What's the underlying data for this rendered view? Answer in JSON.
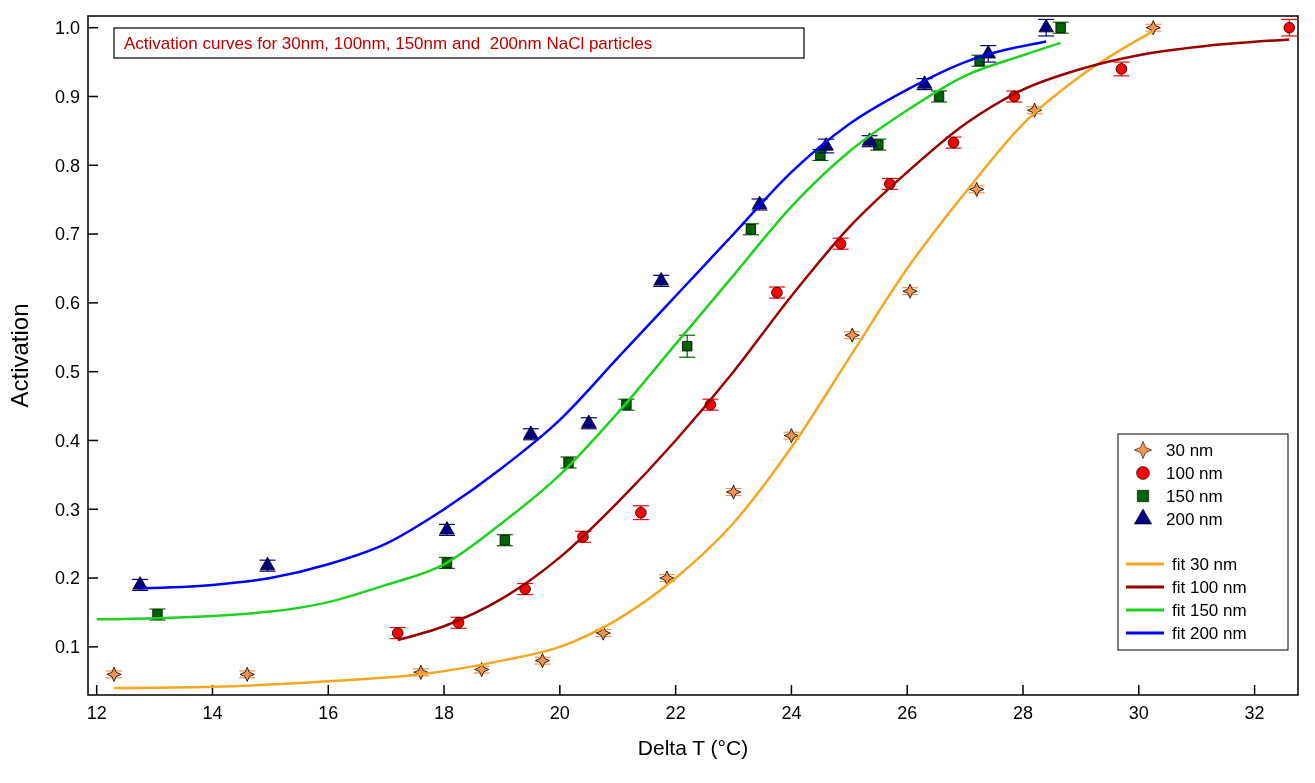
{
  "chart_data": {
    "type": "scatter",
    "title": "Activation curves for 30nm, 100nm, 150nm and  200nm NaCl particles",
    "xlabel": "Delta T (°C)",
    "ylabel": "Activation",
    "xlim": [
      11.85,
      32.75
    ],
    "ylim": [
      0.03,
      1.017
    ],
    "xticks": [
      12,
      14,
      16,
      18,
      20,
      22,
      24,
      26,
      28,
      30,
      32
    ],
    "yticks": [
      0.1,
      0.2,
      0.3,
      0.4,
      0.5,
      0.6,
      0.7,
      0.8,
      0.9,
      {
        "value": 1,
        "label": "1.0"
      }
    ],
    "grid": false,
    "legend": "bottom right",
    "series": [
      {
        "name": "30 nm",
        "marker": "star",
        "color": "#f4934f",
        "x": [
          12.3,
          14.6,
          17.6,
          18.65,
          19.7,
          20.75,
          21.85,
          23.0,
          24.0,
          25.05,
          26.05,
          27.2,
          28.2,
          30.25
        ],
        "values": [
          0.06,
          0.06,
          0.063,
          0.067,
          0.08,
          0.12,
          0.2,
          0.325,
          0.407,
          0.553,
          0.617,
          0.765,
          0.88,
          1.0
        ],
        "errors": [
          0.005,
          0.005,
          0.005,
          0.005,
          0.005,
          0.005,
          0.005,
          0.005,
          0.005,
          0.005,
          0.005,
          0.005,
          0.005,
          0.005
        ]
      },
      {
        "name": "100 nm",
        "marker": "circle",
        "color": "#ff0000",
        "x": [
          17.2,
          18.25,
          19.4,
          20.4,
          21.4,
          22.6,
          23.75,
          24.85,
          25.7,
          26.8,
          27.85,
          29.7,
          32.6
        ],
        "values": [
          0.12,
          0.135,
          0.184,
          0.26,
          0.295,
          0.452,
          0.615,
          0.686,
          0.773,
          0.833,
          0.9,
          0.94,
          1.0
        ],
        "errors": [
          0.008,
          0.008,
          0.008,
          0.008,
          0.01,
          0.008,
          0.008,
          0.008,
          0.008,
          0.008,
          0.008,
          0.01,
          0.012
        ]
      },
      {
        "name": "150 nm",
        "marker": "square",
        "color": "#006400",
        "x": [
          13.05,
          18.05,
          19.05,
          20.15,
          21.15,
          22.2,
          23.3,
          24.5,
          25.5,
          26.55,
          27.25,
          28.65
        ],
        "values": [
          0.147,
          0.222,
          0.255,
          0.368,
          0.452,
          0.537,
          0.707,
          0.815,
          0.83,
          0.9,
          0.952,
          1.0
        ],
        "errors": [
          0.008,
          0.008,
          0.008,
          0.008,
          0.008,
          0.016,
          0.008,
          0.008,
          0.008,
          0.008,
          0.008,
          0.008
        ]
      },
      {
        "name": "200 nm",
        "marker": "triangle",
        "color": "#000080",
        "x": [
          12.75,
          14.95,
          18.05,
          19.5,
          20.5,
          21.75,
          23.45,
          24.6,
          25.35,
          26.3,
          27.4,
          28.4
        ],
        "values": [
          0.19,
          0.218,
          0.27,
          0.409,
          0.425,
          0.632,
          0.743,
          0.828,
          0.835,
          0.918,
          0.962,
          1.0
        ],
        "errors": [
          0.008,
          0.008,
          0.008,
          0.008,
          0.008,
          0.008,
          0.008,
          0.01,
          0.008,
          0.008,
          0.012,
          0.012
        ]
      },
      {
        "name": "fit 30 nm",
        "type": "line",
        "color": "#f5a623",
        "x": [
          12.3,
          14,
          16,
          17.6,
          19,
          20,
          21,
          22,
          23,
          24,
          25,
          26,
          27,
          28,
          29,
          30.25
        ],
        "values": [
          0.04,
          0.042,
          0.05,
          0.06,
          0.08,
          0.1,
          0.14,
          0.2,
          0.28,
          0.39,
          0.52,
          0.65,
          0.76,
          0.86,
          0.93,
          0.995
        ]
      },
      {
        "name": "fit 100 nm",
        "type": "line",
        "color": "#990000",
        "x": [
          17.2,
          18,
          19,
          20,
          21,
          22,
          23,
          24,
          25,
          26,
          27,
          28,
          29,
          30,
          31,
          32.6
        ],
        "values": [
          0.11,
          0.13,
          0.17,
          0.23,
          0.31,
          0.4,
          0.5,
          0.61,
          0.71,
          0.79,
          0.86,
          0.91,
          0.94,
          0.96,
          0.972,
          0.983
        ]
      },
      {
        "name": "fit 150 nm",
        "type": "line",
        "color": "#1fd21f",
        "x": [
          12,
          14,
          16,
          17,
          18,
          19,
          20,
          21,
          22,
          23,
          24,
          25,
          26,
          27,
          28,
          28.65
        ],
        "values": [
          0.14,
          0.145,
          0.165,
          0.19,
          0.22,
          0.28,
          0.35,
          0.44,
          0.54,
          0.64,
          0.74,
          0.82,
          0.88,
          0.93,
          0.96,
          0.978
        ]
      },
      {
        "name": "fit 200 nm",
        "type": "line",
        "color": "#0000ff",
        "x": [
          12.75,
          14,
          15,
          16,
          17,
          18,
          19,
          20,
          21,
          22,
          23,
          24,
          25,
          26,
          27,
          28.4
        ],
        "values": [
          0.185,
          0.19,
          0.2,
          0.22,
          0.25,
          0.3,
          0.36,
          0.43,
          0.52,
          0.61,
          0.7,
          0.79,
          0.86,
          0.91,
          0.95,
          0.98
        ]
      }
    ]
  }
}
